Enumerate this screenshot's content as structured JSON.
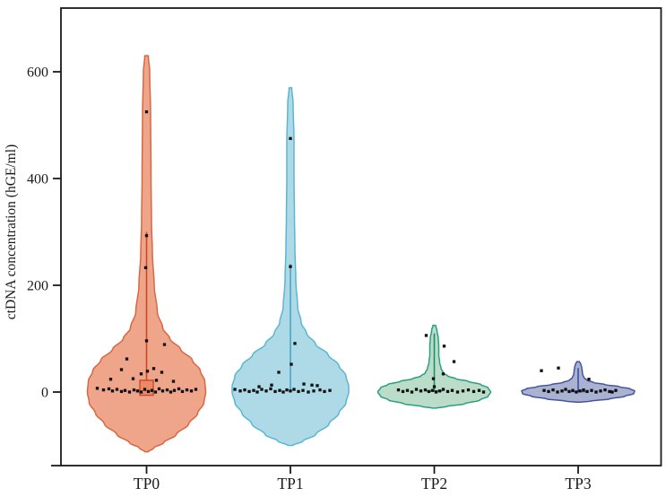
{
  "page": {
    "background": "#ffffff"
  },
  "chart_data": {
    "type": "violin",
    "title": "",
    "xlabel": "",
    "ylabel": "ctDNA concentration (hGE/ml)",
    "categories": [
      "TP0",
      "TP1",
      "TP2",
      "TP3"
    ],
    "y_ticks": [
      0,
      200,
      400,
      600
    ],
    "ylim": [
      -140,
      720
    ],
    "grid": false,
    "legend": "none",
    "axis_color": "#1a1a1a",
    "point_color": "#0d0d0d",
    "series": [
      {
        "name": "TP0",
        "fill": "#efa58a",
        "stroke": "#d86743",
        "profile": [
          [
            630,
            2
          ],
          [
            600,
            3.5
          ],
          [
            520,
            4.5
          ],
          [
            400,
            5
          ],
          [
            320,
            5.5
          ],
          [
            260,
            6.5
          ],
          [
            200,
            8.5
          ],
          [
            150,
            12
          ],
          [
            120,
            18
          ],
          [
            100,
            26
          ],
          [
            80,
            38
          ],
          [
            60,
            51
          ],
          [
            40,
            60
          ],
          [
            20,
            65
          ],
          [
            0,
            66
          ],
          [
            -20,
            64
          ],
          [
            -40,
            57
          ],
          [
            -60,
            47
          ],
          [
            -80,
            33
          ],
          [
            -95,
            19
          ],
          [
            -105,
            8
          ],
          [
            -112,
            2
          ]
        ],
        "box": {
          "lo": -6,
          "hi": 22,
          "fill": "#ea8a64",
          "stroke": "#c84a28"
        },
        "whisker": {
          "lo": 22,
          "hi": 300,
          "color": "#c84a28"
        },
        "median": null,
        "points": [
          [
            525,
            0
          ],
          [
            293,
            0
          ],
          [
            233,
            -1
          ],
          [
            96,
            0
          ],
          [
            89,
            20
          ],
          [
            62,
            -22
          ],
          [
            44,
            8
          ],
          [
            42,
            -28
          ],
          [
            39,
            1
          ],
          [
            37,
            17
          ],
          [
            34,
            -6
          ],
          [
            25,
            -15
          ],
          [
            24,
            -40
          ],
          [
            22,
            11
          ],
          [
            20,
            30
          ],
          [
            7,
            -55
          ],
          [
            4,
            -48
          ],
          [
            6,
            -42
          ],
          [
            2,
            -38
          ],
          [
            5,
            -33
          ],
          [
            1,
            -28
          ],
          [
            3,
            -24
          ],
          [
            0,
            -19
          ],
          [
            4,
            -14
          ],
          [
            2,
            -10
          ],
          [
            0,
            -6
          ],
          [
            5,
            -2
          ],
          [
            1,
            2
          ],
          [
            3,
            6
          ],
          [
            0,
            10
          ],
          [
            6,
            14
          ],
          [
            2,
            18
          ],
          [
            4,
            23
          ],
          [
            0,
            27
          ],
          [
            3,
            31
          ],
          [
            6,
            36
          ],
          [
            1,
            40
          ],
          [
            4,
            45
          ],
          [
            2,
            50
          ],
          [
            5,
            55
          ]
        ]
      },
      {
        "name": "TP1",
        "fill": "#aed9e6",
        "stroke": "#5cb6d2",
        "profile": [
          [
            570,
            1.5
          ],
          [
            540,
            3
          ],
          [
            470,
            4
          ],
          [
            400,
            4
          ],
          [
            330,
            4.5
          ],
          [
            270,
            5
          ],
          [
            210,
            6
          ],
          [
            160,
            8
          ],
          [
            130,
            12
          ],
          [
            110,
            18
          ],
          [
            90,
            28
          ],
          [
            70,
            42
          ],
          [
            50,
            54
          ],
          [
            30,
            62
          ],
          [
            10,
            65
          ],
          [
            0,
            65
          ],
          [
            -20,
            62
          ],
          [
            -40,
            54
          ],
          [
            -60,
            43
          ],
          [
            -80,
            28
          ],
          [
            -92,
            14
          ],
          [
            -100,
            3
          ]
        ],
        "box": null,
        "whisker": {
          "lo": 2,
          "hi": 240,
          "color": "#49a5c6"
        },
        "median": null,
        "points": [
          [
            475,
            0
          ],
          [
            235,
            0
          ],
          [
            91,
            5
          ],
          [
            52,
            1
          ],
          [
            37,
            -13
          ],
          [
            15,
            15
          ],
          [
            13,
            -21
          ],
          [
            13,
            24
          ],
          [
            12,
            30
          ],
          [
            10,
            -35
          ],
          [
            5,
            -62
          ],
          [
            2,
            -56
          ],
          [
            4,
            -51
          ],
          [
            1,
            -46
          ],
          [
            3,
            -41
          ],
          [
            0,
            -37
          ],
          [
            5,
            -32
          ],
          [
            2,
            -27
          ],
          [
            6,
            -22
          ],
          [
            1,
            -17
          ],
          [
            3,
            -12
          ],
          [
            0,
            -8
          ],
          [
            4,
            -4
          ],
          [
            2,
            0
          ],
          [
            5,
            4
          ],
          [
            1,
            9
          ],
          [
            3,
            14
          ],
          [
            0,
            20
          ],
          [
            2,
            26
          ],
          [
            4,
            33
          ],
          [
            1,
            38
          ],
          [
            3,
            44
          ]
        ]
      },
      {
        "name": "TP2",
        "fill": "#badcc8",
        "stroke": "#2aa07e",
        "profile": [
          [
            125,
            1.5
          ],
          [
            115,
            3
          ],
          [
            100,
            4.5
          ],
          [
            85,
            5
          ],
          [
            70,
            5
          ],
          [
            55,
            6
          ],
          [
            45,
            7.5
          ],
          [
            36,
            10
          ],
          [
            30,
            15
          ],
          [
            25,
            24
          ],
          [
            20,
            38
          ],
          [
            14,
            52
          ],
          [
            8,
            60
          ],
          [
            0,
            63
          ],
          [
            -8,
            60
          ],
          [
            -15,
            51
          ],
          [
            -22,
            34
          ],
          [
            -27,
            14
          ],
          [
            -30,
            3
          ]
        ],
        "box": null,
        "whisker": {
          "lo": 0,
          "hi": 110,
          "color": "#1f8f6d"
        },
        "median": {
          "v": 2,
          "hw": 9,
          "color": "#1f8f6d"
        },
        "points": [
          [
            106,
            -9
          ],
          [
            86,
            11
          ],
          [
            57,
            22
          ],
          [
            34,
            10
          ],
          [
            25,
            -1
          ],
          [
            10,
            0
          ],
          [
            4,
            -40
          ],
          [
            1,
            -35
          ],
          [
            3,
            -30
          ],
          [
            0,
            -25
          ],
          [
            5,
            -20
          ],
          [
            2,
            -15
          ],
          [
            4,
            -10
          ],
          [
            1,
            -6
          ],
          [
            3,
            -2
          ],
          [
            0,
            2
          ],
          [
            2,
            6
          ],
          [
            5,
            10
          ],
          [
            1,
            15
          ],
          [
            3,
            20
          ],
          [
            0,
            26
          ],
          [
            2,
            32
          ],
          [
            4,
            38
          ],
          [
            1,
            44
          ],
          [
            3,
            50
          ],
          [
            0,
            55
          ]
        ]
      },
      {
        "name": "TP3",
        "fill": "#a9b3d1",
        "stroke": "#46549f",
        "profile": [
          [
            57,
            1.5
          ],
          [
            52,
            3
          ],
          [
            46,
            4
          ],
          [
            40,
            4.5
          ],
          [
            33,
            5
          ],
          [
            27,
            6.5
          ],
          [
            22,
            10
          ],
          [
            18,
            17
          ],
          [
            14,
            30
          ],
          [
            10,
            46
          ],
          [
            6,
            58
          ],
          [
            2,
            63
          ],
          [
            -3,
            62
          ],
          [
            -8,
            52
          ],
          [
            -13,
            35
          ],
          [
            -17,
            14
          ],
          [
            -19,
            3
          ]
        ],
        "box": null,
        "whisker": {
          "lo": 0,
          "hi": 45,
          "color": "#3d4f9b"
        },
        "median": {
          "v": 1,
          "hw": 8,
          "color": "#3d4f9b"
        },
        "points": [
          [
            45,
            -22
          ],
          [
            40,
            -41
          ],
          [
            24,
            12
          ],
          [
            3,
            -38
          ],
          [
            1,
            -33
          ],
          [
            4,
            -28
          ],
          [
            0,
            -23
          ],
          [
            2,
            -18
          ],
          [
            5,
            -14
          ],
          [
            1,
            -10
          ],
          [
            3,
            -6
          ],
          [
            0,
            -2
          ],
          [
            2,
            2
          ],
          [
            4,
            6
          ],
          [
            1,
            10
          ],
          [
            3,
            15
          ],
          [
            0,
            20
          ],
          [
            2,
            25
          ],
          [
            4,
            30
          ],
          [
            1,
            35
          ],
          [
            3,
            42
          ],
          [
            0,
            38
          ]
        ]
      }
    ]
  }
}
